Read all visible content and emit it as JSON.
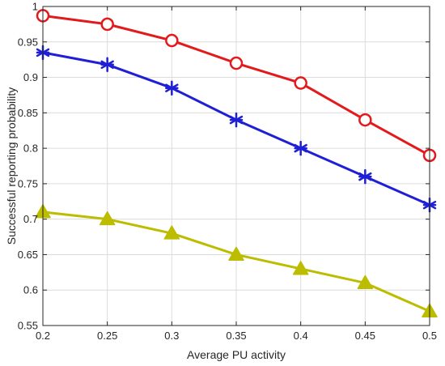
{
  "chart_data": {
    "type": "line",
    "title": "",
    "xlabel": "Average PU activity",
    "ylabel": "Successful reporting probability",
    "xlim": [
      0.2,
      0.5
    ],
    "ylim": [
      0.55,
      1.0
    ],
    "x_ticks": [
      "0.2",
      "0.25",
      "0.3",
      "0.35",
      "0.4",
      "0.45",
      "0.5"
    ],
    "y_ticks": [
      "0.55",
      "0.6",
      "0.65",
      "0.7",
      "0.75",
      "0.8",
      "0.85",
      "0.9",
      "0.95",
      "1"
    ],
    "grid": true,
    "legend": "none",
    "x": [
      0.2,
      0.25,
      0.3,
      0.35,
      0.4,
      0.45,
      0.5
    ],
    "series": [
      {
        "marker": "circle",
        "color": "#e31a1c",
        "values": [
          0.987,
          0.975,
          0.952,
          0.92,
          0.892,
          0.84,
          0.79
        ]
      },
      {
        "marker": "asterisk",
        "color": "#1f1fd6",
        "values": [
          0.935,
          0.918,
          0.885,
          0.84,
          0.8,
          0.76,
          0.72
        ]
      },
      {
        "marker": "triangle",
        "color": "#bcbc00",
        "values": [
          0.71,
          0.7,
          0.68,
          0.65,
          0.63,
          0.61,
          0.57
        ]
      }
    ]
  }
}
